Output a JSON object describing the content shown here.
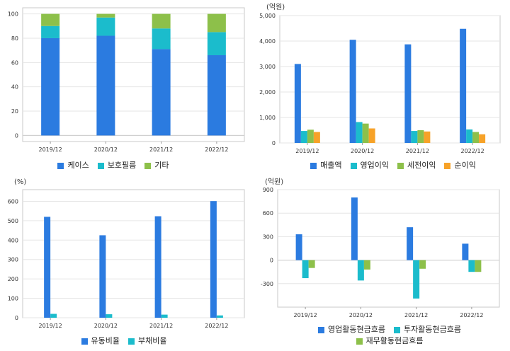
{
  "chart_data": [
    {
      "type": "bar",
      "stacked": true,
      "title": "",
      "unit": "",
      "categories": [
        "2019/12",
        "2020/12",
        "2021/12",
        "2022/12"
      ],
      "series": [
        {
          "name": "케이스",
          "color": "#2b7be0",
          "values": [
            80,
            82,
            71,
            66
          ]
        },
        {
          "name": "보호필름",
          "color": "#1bbccc",
          "values": [
            10,
            15,
            17,
            19
          ]
        },
        {
          "name": "기타",
          "color": "#8dc04a",
          "values": [
            10,
            3,
            12,
            15
          ]
        }
      ],
      "ylim": [
        -5,
        105
      ],
      "yticks": [
        0,
        20,
        40,
        60,
        80,
        100
      ],
      "grid": true,
      "legend": "bottom"
    },
    {
      "type": "bar",
      "title": "",
      "unit": "(억원)",
      "categories": [
        "2019/12",
        "2020/12",
        "2021/12",
        "2022/12"
      ],
      "series": [
        {
          "name": "매출액",
          "color": "#2b7be0",
          "values": [
            3100,
            4050,
            3870,
            4480
          ]
        },
        {
          "name": "영업이익",
          "color": "#1bbccc",
          "values": [
            470,
            820,
            470,
            530
          ]
        },
        {
          "name": "세전이익",
          "color": "#8dc04a",
          "values": [
            520,
            760,
            500,
            430
          ]
        },
        {
          "name": "순이익",
          "color": "#f7a228",
          "values": [
            430,
            570,
            450,
            340
          ]
        }
      ],
      "ylim": [
        0,
        5000
      ],
      "yticks": [
        "0",
        "1,000",
        "2,000",
        "3,000",
        "4,000",
        "5,000"
      ],
      "grid": true,
      "legend": "bottom"
    },
    {
      "type": "bar",
      "title": "",
      "unit": "(%)",
      "categories": [
        "2019/12",
        "2020/12",
        "2021/12",
        "2022/12"
      ],
      "series": [
        {
          "name": "유동비율",
          "color": "#2b7be0",
          "values": [
            520,
            425,
            523,
            601
          ]
        },
        {
          "name": "부채비율",
          "color": "#1bbccc",
          "values": [
            20,
            18,
            16,
            12
          ]
        }
      ],
      "ylim": [
        0,
        660
      ],
      "yticks": [
        0,
        100,
        200,
        300,
        400,
        500,
        600
      ],
      "grid": true,
      "legend": "bottom"
    },
    {
      "type": "bar",
      "title": "",
      "unit": "(억원)",
      "categories": [
        "2019/12",
        "2020/12",
        "2021/12",
        "2022/12"
      ],
      "series": [
        {
          "name": "영업활동현금흐름",
          "color": "#2b7be0",
          "values": [
            330,
            800,
            420,
            210
          ]
        },
        {
          "name": "투자활동현금흐름",
          "color": "#1bbccc",
          "values": [
            -230,
            -260,
            -490,
            -150
          ]
        },
        {
          "name": "재무활동현금흐름",
          "color": "#8dc04a",
          "values": [
            -100,
            -120,
            -110,
            -150
          ]
        }
      ],
      "ylim": [
        -600,
        900
      ],
      "yticks": [
        "-300",
        "0",
        "300",
        "600",
        "900"
      ],
      "grid": true,
      "legend": "bottom"
    }
  ]
}
